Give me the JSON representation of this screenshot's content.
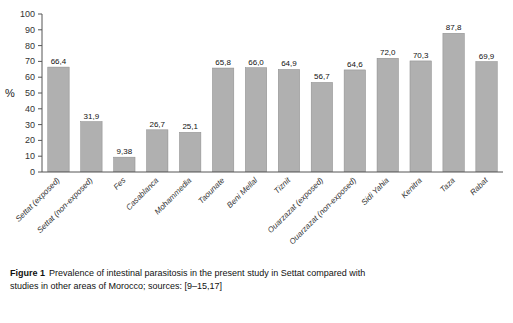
{
  "chart_data": {
    "type": "bar",
    "title": "Figure 1",
    "subtitle": "Prevalence of intestinal parasitosis in the present study in Settat compared with\nstudies in other areas of Morocco; sources: [9–15,17]",
    "ylabel": "%",
    "categories": [
      "Settat (exposed)",
      "Settat (non-exposed)",
      "Fes",
      "Casablanca",
      "Mohammedia",
      "Taounate",
      "Beni Mellal",
      "Tiznit",
      "Ouarzazat (exposed)",
      "Ouarzazat (non-exposed)",
      "Sidi Yahia",
      "Kenitra",
      "Taza",
      "Rabat"
    ],
    "values": [
      66.4,
      31.9,
      9.38,
      26.7,
      25.1,
      65.8,
      66.0,
      64.9,
      56.7,
      64.6,
      72.0,
      70.3,
      87.8,
      69.9
    ],
    "value_labels": [
      "66,4",
      "31,9",
      "9,38",
      "26,7",
      "25,1",
      "65,8",
      "66,0",
      "64,9",
      "56,7",
      "64,6",
      "72,0",
      "70,3",
      "87,8",
      "69,9"
    ],
    "color": "#b0b0b0",
    "ylim": [
      0,
      100
    ],
    "yticks": [
      0,
      10,
      20,
      30,
      40,
      50,
      60,
      70,
      80,
      90,
      100
    ],
    "grid": false,
    "data_labels": true
  }
}
